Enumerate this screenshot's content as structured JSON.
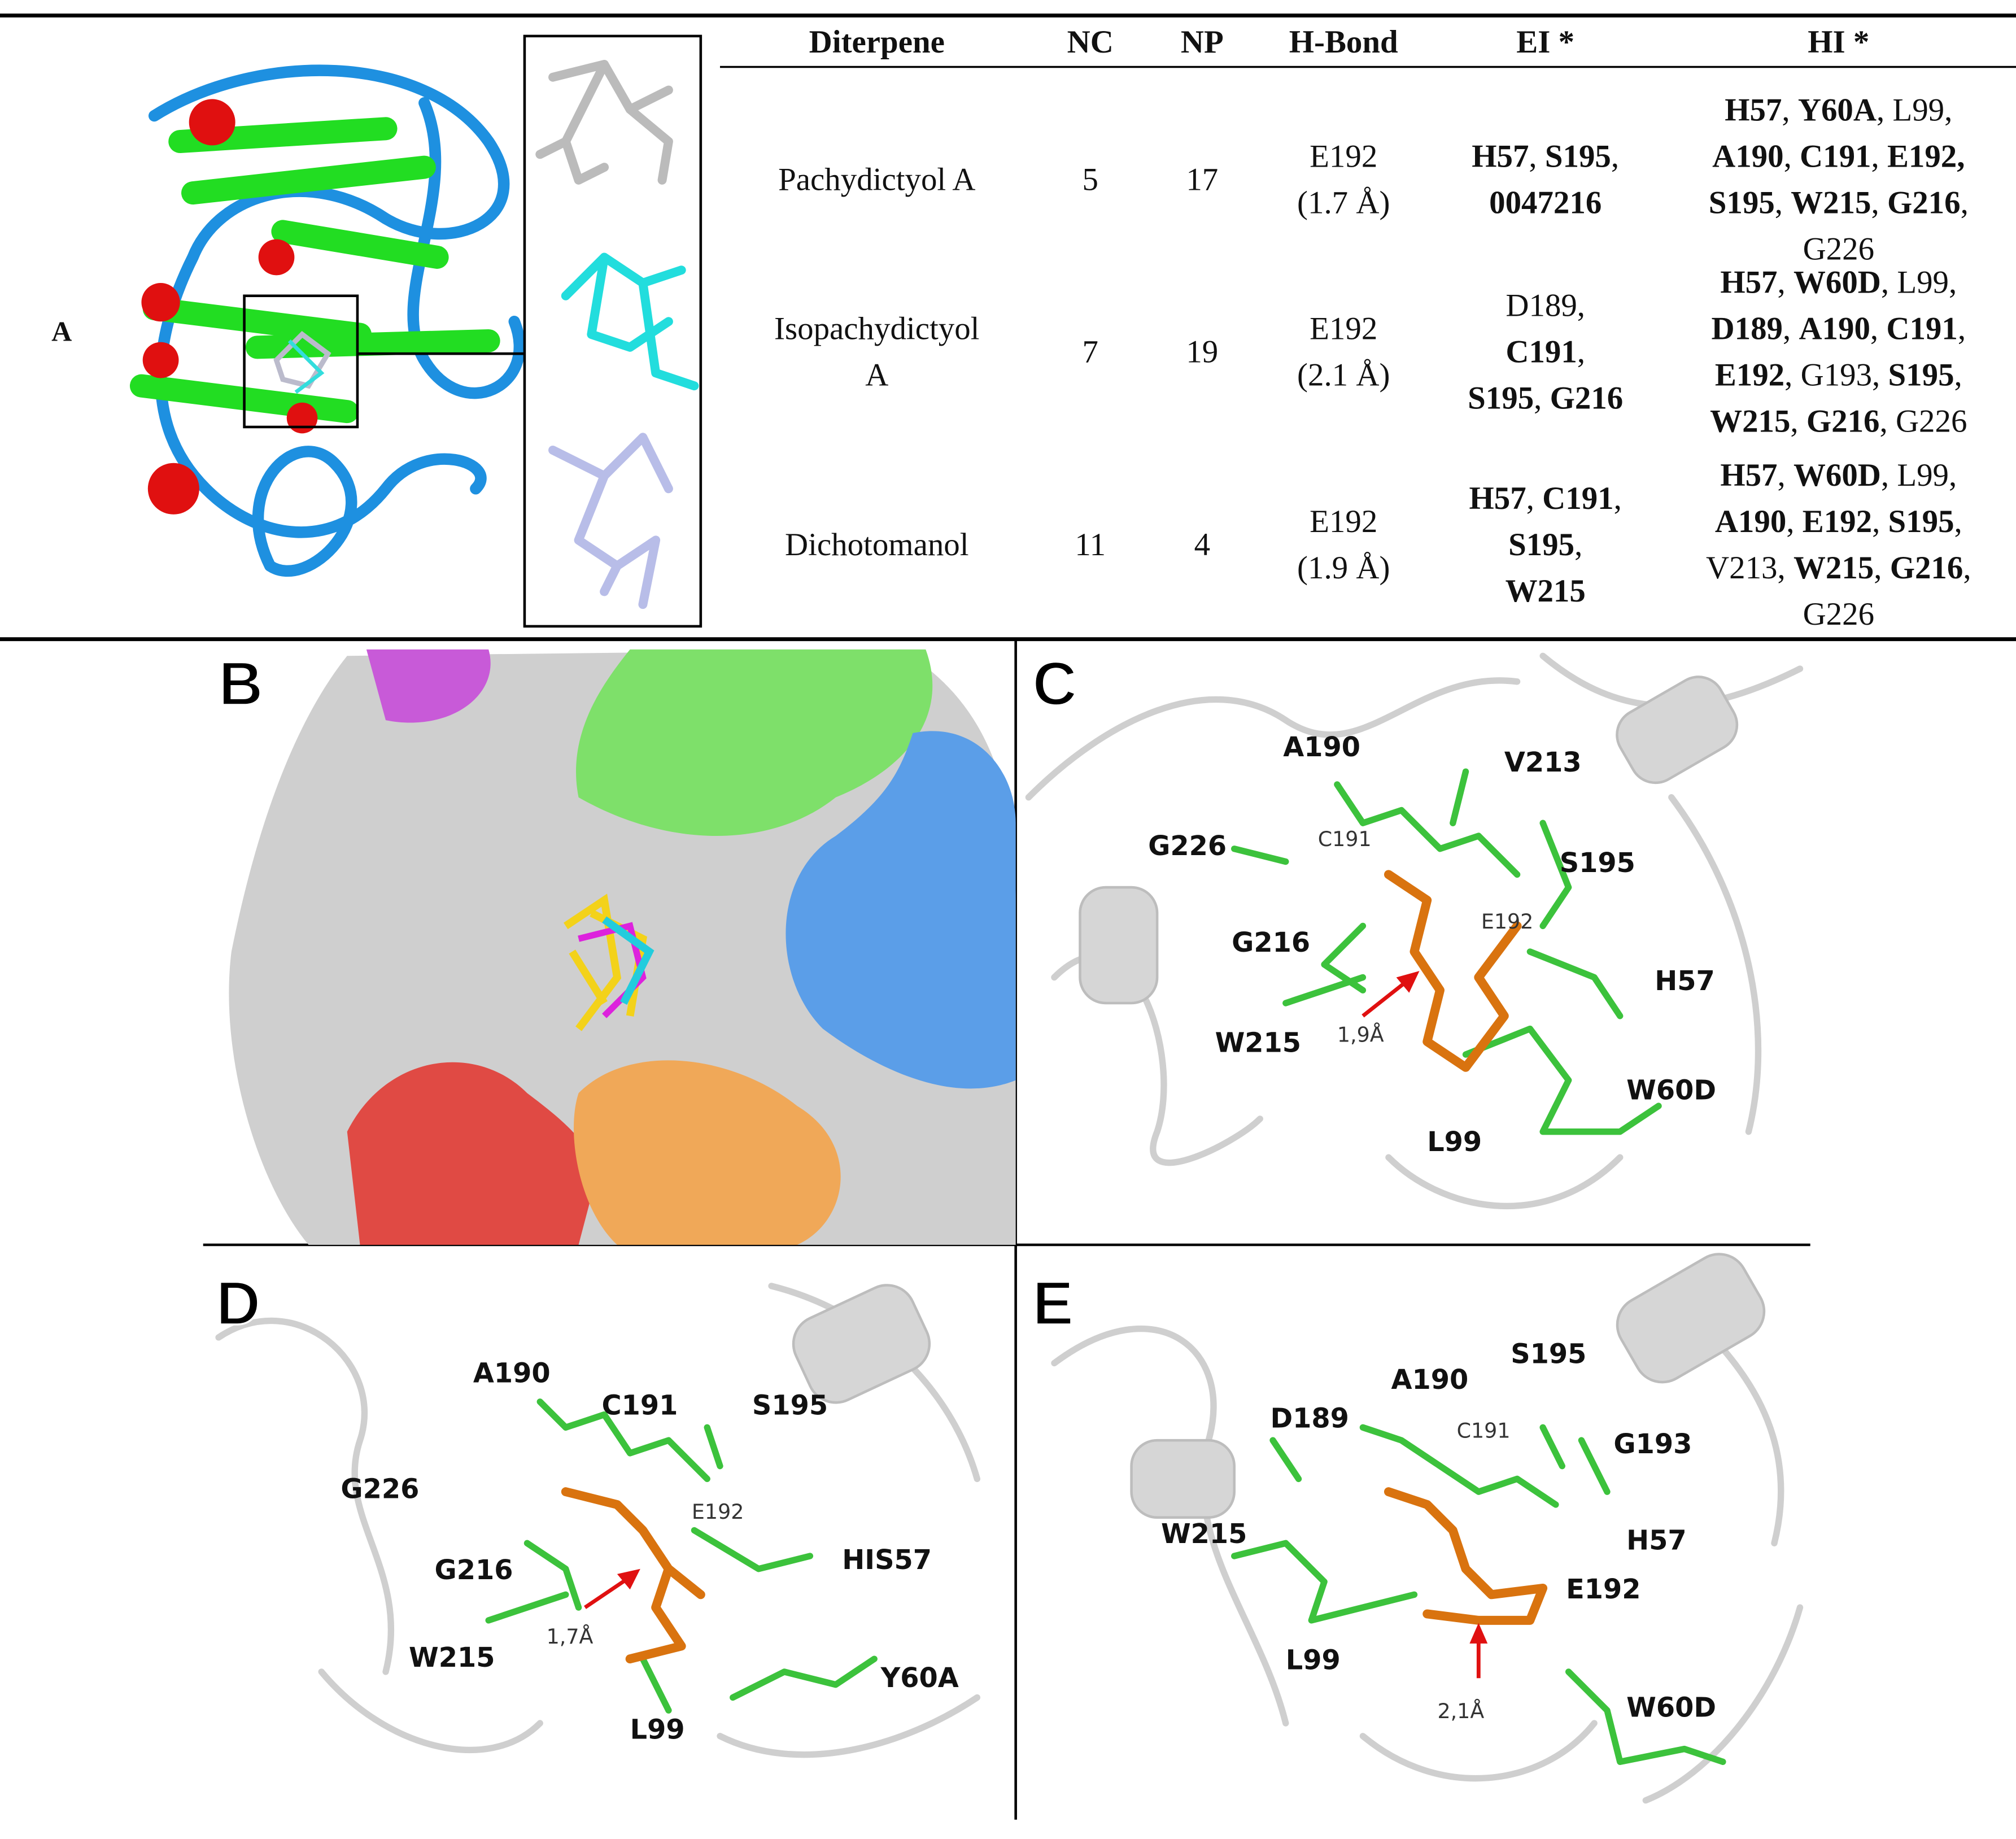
{
  "panel_a": {
    "label": "A"
  },
  "table": {
    "headers": [
      "Diterpene",
      "NC",
      "NP",
      "H-Bond",
      "EI *",
      "HI *"
    ],
    "rows": [
      {
        "cells": [
          [
            [
              {
                "t": "Pachydictyol A"
              }
            ]
          ],
          [
            [
              {
                "t": 5
              }
            ]
          ],
          [
            [
              {
                "t": 17
              }
            ]
          ],
          [
            [
              {
                "t": "E192"
              }
            ],
            [
              {
                "t": "(1.7 Å)"
              }
            ]
          ],
          [
            [
              {
                "t": "H57",
                "b": true
              },
              {
                "t": ", "
              },
              {
                "t": "S195",
                "b": true
              },
              {
                "t": ","
              }
            ],
            [
              {
                "t": "0047216",
                "b": true
              }
            ]
          ],
          [
            [
              {
                "t": "H57",
                "b": true
              },
              {
                "t": ", "
              },
              {
                "t": "Y60A",
                "b": true
              },
              {
                "t": ", L99,"
              }
            ],
            [
              {
                "t": "A190",
                "b": true
              },
              {
                "t": ", "
              },
              {
                "t": "C191",
                "b": true
              },
              {
                "t": ", "
              },
              {
                "t": "E192,",
                "b": true
              }
            ],
            [
              {
                "t": "S195",
                "b": true
              },
              {
                "t": ", "
              },
              {
                "t": "W215",
                "b": true
              },
              {
                "t": ", "
              },
              {
                "t": "G216",
                "b": true
              },
              {
                "t": ","
              }
            ],
            [
              {
                "t": "G226"
              }
            ]
          ]
        ]
      },
      {
        "cells": [
          [
            [
              {
                "t": "Isopachydictyol"
              }
            ],
            [
              {
                "t": "A"
              }
            ]
          ],
          [
            [
              {
                "t": 7
              }
            ]
          ],
          [
            [
              {
                "t": 19
              }
            ]
          ],
          [
            [
              {
                "t": "E192"
              }
            ],
            [
              {
                "t": "(2.1 Å)"
              }
            ]
          ],
          [
            [
              {
                "t": "D189,"
              }
            ],
            [
              {
                "t": "C191",
                "b": true
              },
              {
                "t": ","
              }
            ],
            [
              {
                "t": "S195",
                "b": true
              },
              {
                "t": ", "
              },
              {
                "t": "G216",
                "b": true
              }
            ]
          ],
          [
            [
              {
                "t": "H57",
                "b": true
              },
              {
                "t": ", "
              },
              {
                "t": "W60D",
                "b": true
              },
              {
                "t": ", L99,"
              }
            ],
            [
              {
                "t": "D189",
                "b": true
              },
              {
                "t": ", "
              },
              {
                "t": "A190",
                "b": true
              },
              {
                "t": ", "
              },
              {
                "t": "C191",
                "b": true
              },
              {
                "t": ","
              }
            ],
            [
              {
                "t": "E192",
                "b": true
              },
              {
                "t": ", G193, "
              },
              {
                "t": "S195",
                "b": true
              },
              {
                "t": ","
              }
            ],
            [
              {
                "t": "W215",
                "b": true
              },
              {
                "t": ", "
              },
              {
                "t": "G216",
                "b": true
              },
              {
                "t": ", G226"
              }
            ]
          ]
        ]
      },
      {
        "cells": [
          [
            [
              {
                "t": "Dichotomanol"
              }
            ]
          ],
          [
            [
              {
                "t": 11
              }
            ]
          ],
          [
            [
              {
                "t": 4
              }
            ]
          ],
          [
            [
              {
                "t": "E192"
              }
            ],
            [
              {
                "t": "(1.9 Å)"
              }
            ]
          ],
          [
            [
              {
                "t": "H57",
                "b": true
              },
              {
                "t": ", "
              },
              {
                "t": "C191",
                "b": true
              },
              {
                "t": ","
              }
            ],
            [
              {
                "t": "S195",
                "b": true
              },
              {
                "t": ","
              }
            ],
            [
              {
                "t": "W215",
                "b": true
              }
            ]
          ],
          [
            [
              {
                "t": "H57",
                "b": true
              },
              {
                "t": ", "
              },
              {
                "t": "W60D",
                "b": true
              },
              {
                "t": ", L99,"
              }
            ],
            [
              {
                "t": "A190",
                "b": true
              },
              {
                "t": ", "
              },
              {
                "t": "E192",
                "b": true
              },
              {
                "t": ", "
              },
              {
                "t": "S195",
                "b": true
              },
              {
                "t": ","
              }
            ],
            [
              {
                "t": "V213, "
              },
              {
                "t": "W215",
                "b": true
              },
              {
                "t": ", "
              },
              {
                "t": "G216",
                "b": true
              },
              {
                "t": ","
              }
            ],
            [
              {
                "t": "G226"
              }
            ]
          ]
        ]
      }
    ]
  },
  "panels": {
    "b": {
      "label": "B"
    },
    "c": {
      "label": "C",
      "residues": [
        "A190",
        "V213",
        "G226",
        "C191",
        "S195",
        "E192",
        "G216",
        "H57",
        "W215",
        "W60D",
        "L99"
      ],
      "distance": "1,9Å"
    },
    "d": {
      "label": "D",
      "residues": [
        "A190",
        "C191",
        "S195",
        "G226",
        "E192",
        "HIS57",
        "G216",
        "W215",
        "Y60A",
        "L99"
      ],
      "distance": "1,7Å"
    },
    "e": {
      "label": "E",
      "residues": [
        "S195",
        "A190",
        "D189",
        "C191",
        "G193",
        "H57",
        "W215",
        "E192",
        "L99",
        "W60D"
      ],
      "distance": "2,1Å"
    }
  }
}
